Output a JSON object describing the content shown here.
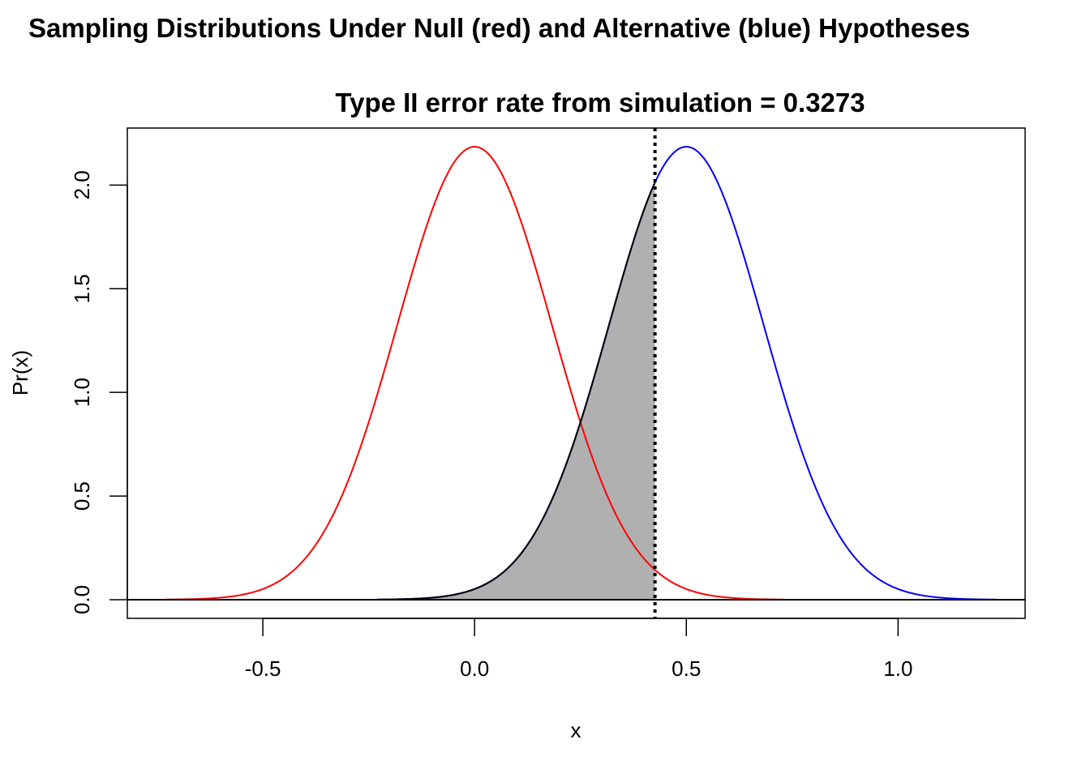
{
  "chart_data": {
    "type": "line",
    "title": "Sampling Distributions Under Null (red) and Alternative (blue) Hypotheses",
    "subtitle": "Type II error rate from simulation = 0.3273",
    "xlabel": "x",
    "ylabel": "Pr(x)",
    "xlim": [
      -0.82,
      1.3
    ],
    "ylim": [
      -0.09,
      2.275
    ],
    "xticks": [
      -0.5,
      0.0,
      0.5,
      1.0
    ],
    "xtick_labels": [
      "-0.5",
      "0.0",
      "0.5",
      "1.0"
    ],
    "yticks": [
      0.0,
      0.5,
      1.0,
      1.5,
      2.0
    ],
    "ytick_labels": [
      "0.0",
      "0.5",
      "1.0",
      "1.5",
      "2.0"
    ],
    "grid": false,
    "series": [
      {
        "color": "#ff0000",
        "distribution": "normal",
        "mean": 0.0,
        "sd": 0.1826,
        "x_range": [
          -0.73,
          0.73
        ]
      },
      {
        "color": "#0000ff",
        "distribution": "normal",
        "mean": 0.5,
        "sd": 0.1826,
        "x_range": [
          -0.23,
          1.23
        ]
      }
    ],
    "shaded_region": {
      "color": "#b0b0b0",
      "under": "alternative",
      "x_range": [
        -0.23,
        0.426
      ],
      "area": 0.3273
    },
    "critical_value": {
      "x": 0.426,
      "line_style": "dotted",
      "color": "#000000"
    },
    "baseline": {
      "y": 0.0,
      "color": "#000000"
    }
  }
}
